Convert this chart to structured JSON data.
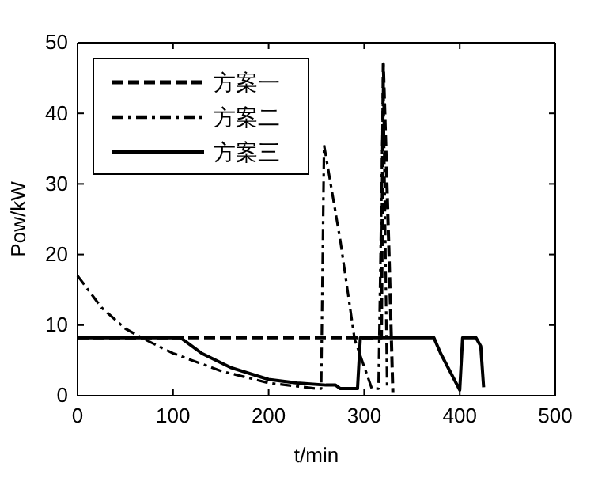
{
  "chart_data": {
    "type": "line",
    "xlabel": "t/min",
    "ylabel": "Pow/kW",
    "xlim": [
      0,
      500
    ],
    "ylim": [
      0,
      50
    ],
    "xticks": [
      0,
      100,
      200,
      300,
      400,
      500
    ],
    "yticks": [
      0,
      10,
      20,
      30,
      40,
      50
    ],
    "legend": "top left",
    "grid": false,
    "marker": "none",
    "series": [
      {
        "name": "方案一",
        "color": "#000000",
        "line_style": "dashed",
        "x": [
          0,
          318,
          320,
          326,
          330
        ],
        "values": [
          8.2,
          8.2,
          47,
          20,
          0.5
        ]
      },
      {
        "name": "方案二",
        "color": "#000000",
        "line_style": "dashdot",
        "x": [
          0,
          25,
          50,
          70,
          100,
          150,
          200,
          250,
          255,
          258,
          275,
          290,
          308,
          315,
          320,
          324
        ],
        "values": [
          17,
          12.5,
          9.5,
          8,
          6,
          3.5,
          1.8,
          1,
          1,
          35.5,
          22,
          8,
          1,
          1,
          45,
          1
        ]
      },
      {
        "name": "方案三",
        "color": "#000000",
        "line_style": "solid",
        "x": [
          0,
          108,
          130,
          160,
          200,
          230,
          260,
          270,
          275,
          293,
          296,
          373,
          380,
          400,
          403,
          417,
          422,
          425
        ],
        "values": [
          8.2,
          8.2,
          6,
          4,
          2.3,
          1.8,
          1.5,
          1.5,
          1,
          1,
          8.2,
          8.2,
          6,
          0.8,
          8.2,
          8.2,
          7,
          1.2
        ]
      }
    ]
  }
}
